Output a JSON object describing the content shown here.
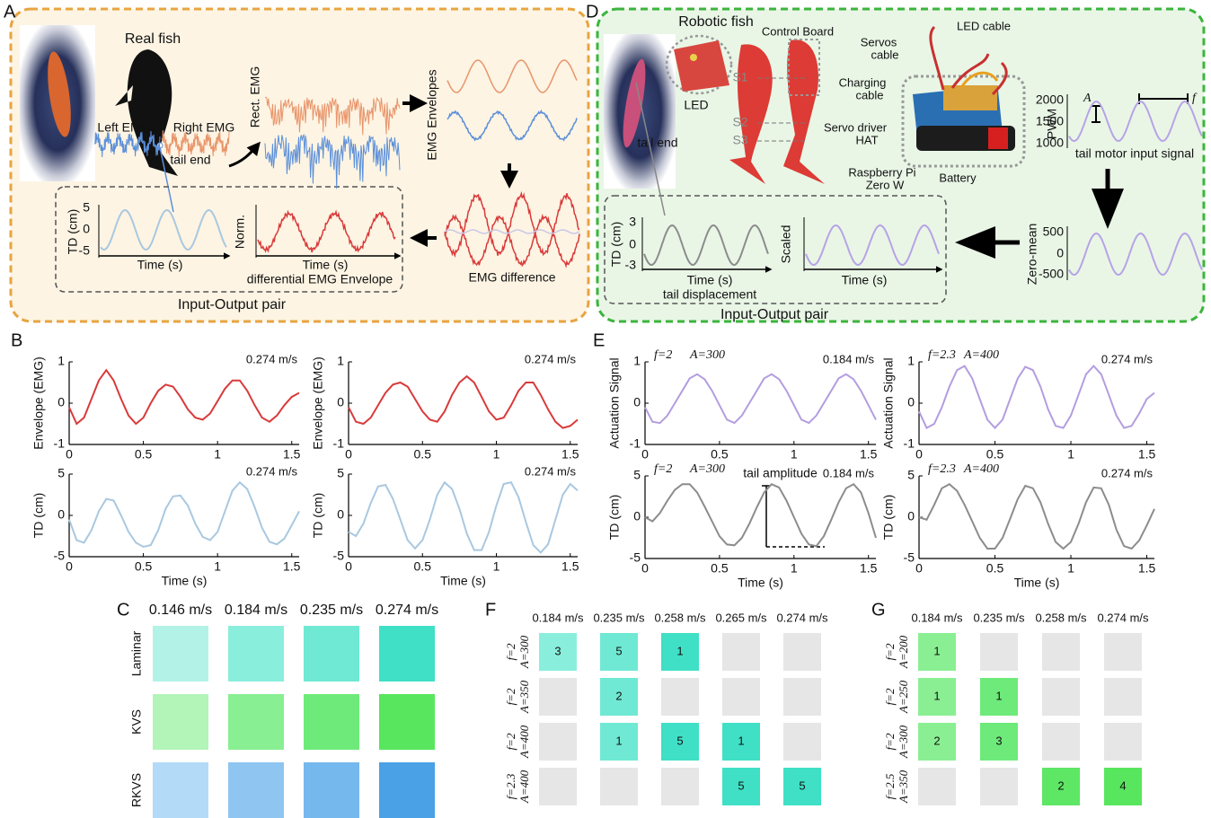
{
  "panel_labels": [
    "A",
    "B",
    "C",
    "D",
    "E",
    "F",
    "G"
  ],
  "diagram_a": {
    "title": "Real fish",
    "left_emg": "Left EMG",
    "right_emg": "Right EMG",
    "tail_end": "tail end",
    "rect_emg": "Rect. EMG",
    "emg_envelopes": "EMG Envelopes",
    "emg_difference": "EMG difference",
    "td_label": "TD (cm)",
    "td_ticks": [
      5,
      0,
      -5
    ],
    "td_xlabel": "Time (s)",
    "norm_label": "Norm.",
    "norm_xlabel": "Time (s)",
    "norm_caption": "differential EMG Envelope",
    "pair_label": "Input-Output pair"
  },
  "diagram_d": {
    "title": "Robotic fish",
    "led": "LED",
    "tail_end": "tail end",
    "segments": [
      "S1",
      "S2",
      "S3"
    ],
    "control_board": "Control Board",
    "led_cable": "LED cable",
    "servos_cable": [
      "Servos",
      "cable"
    ],
    "charging_cable": [
      "Charging",
      "cable"
    ],
    "servo_driver": [
      "Servo driver",
      "HAT"
    ],
    "raspberry_pi": [
      "Raspberry Pi",
      "Zero W"
    ],
    "battery": "Battery",
    "pwm_label": "PWM",
    "pwm_ticks": [
      2000,
      1500,
      1000
    ],
    "amplitude_symbol": "A",
    "frequency_symbol": "f",
    "pwm_caption": "tail motor input signal",
    "zero_mean_label": "Zero-mean",
    "zero_mean_ticks": [
      500,
      0,
      -500
    ],
    "td_label": "TD (cm)",
    "td_ticks": [
      3,
      0,
      -3
    ],
    "td_xlabel": "Time (s)",
    "td_caption": "tail displacement",
    "scaled_label": "Scaled",
    "scaled_xlabel": "Time (s)",
    "pair_label": "Input-Output pair"
  },
  "chart_data": [
    {
      "type": "line",
      "ylabel": "Envelope (EMG)",
      "annotation": "0.274 m/s",
      "color": "#d93a3a",
      "x": [
        0,
        0.05,
        0.1,
        0.15,
        0.2,
        0.25,
        0.3,
        0.35,
        0.4,
        0.45,
        0.5,
        0.55,
        0.6,
        0.65,
        0.7,
        0.75,
        0.8,
        0.85,
        0.9,
        0.95,
        1,
        1.05,
        1.1,
        1.15,
        1.2,
        1.25,
        1.3,
        1.35,
        1.4,
        1.45,
        1.5,
        1.55
      ],
      "values": [
        -0.1,
        -0.5,
        -0.35,
        0.1,
        0.55,
        0.8,
        0.55,
        0.1,
        -0.3,
        -0.5,
        -0.35,
        0,
        0.3,
        0.45,
        0.4,
        0.15,
        -0.15,
        -0.35,
        -0.4,
        -0.25,
        0.05,
        0.35,
        0.55,
        0.55,
        0.3,
        -0.05,
        -0.35,
        -0.45,
        -0.3,
        -0.05,
        0.15,
        0.25
      ],
      "xlim": [
        0,
        1.55
      ],
      "ylim": [
        -1,
        1
      ],
      "xticks": [
        0,
        0.5,
        1,
        1.5
      ],
      "yticks": [
        -1,
        0,
        1
      ]
    },
    {
      "type": "line",
      "ylabel": "Envelope (EMG)",
      "annotation": "0.274 m/s",
      "color": "#d93a3a",
      "x": [
        0,
        0.05,
        0.1,
        0.15,
        0.2,
        0.25,
        0.3,
        0.35,
        0.4,
        0.45,
        0.5,
        0.55,
        0.6,
        0.65,
        0.7,
        0.75,
        0.8,
        0.85,
        0.9,
        0.95,
        1,
        1.05,
        1.1,
        1.15,
        1.2,
        1.25,
        1.3,
        1.35,
        1.4,
        1.45,
        1.5,
        1.55
      ],
      "values": [
        -0.1,
        -0.45,
        -0.5,
        -0.35,
        -0.05,
        0.25,
        0.45,
        0.5,
        0.4,
        0.1,
        -0.2,
        -0.4,
        -0.45,
        -0.2,
        0.2,
        0.5,
        0.65,
        0.5,
        0.15,
        -0.2,
        -0.4,
        -0.35,
        -0.05,
        0.3,
        0.5,
        0.5,
        0.2,
        -0.15,
        -0.45,
        -0.6,
        -0.55,
        -0.4
      ],
      "xlim": [
        0,
        1.55
      ],
      "ylim": [
        -1,
        1
      ],
      "xticks": [
        0,
        0.5,
        1,
        1.5
      ],
      "yticks": [
        -1,
        0,
        1
      ]
    },
    {
      "type": "line",
      "ylabel": "TD (cm)",
      "xlabel": "Time (s)",
      "annotation": "0.274 m/s",
      "color": "#a9c8e0",
      "x": [
        0,
        0.05,
        0.1,
        0.15,
        0.2,
        0.25,
        0.3,
        0.35,
        0.4,
        0.45,
        0.5,
        0.55,
        0.6,
        0.65,
        0.7,
        0.75,
        0.8,
        0.85,
        0.9,
        0.95,
        1,
        1.05,
        1.1,
        1.15,
        1.2,
        1.25,
        1.3,
        1.35,
        1.4,
        1.45,
        1.5,
        1.55
      ],
      "values": [
        -0.5,
        -3,
        -3.3,
        -1.8,
        0.5,
        2,
        1.8,
        0,
        -2,
        -3.3,
        -3.8,
        -3.6,
        -1.8,
        0.8,
        2.3,
        2.4,
        1.2,
        -1,
        -2.6,
        -3,
        -2,
        0.5,
        3,
        4,
        3.2,
        1,
        -1.5,
        -3.2,
        -3.5,
        -2.8,
        -1.2,
        0.5
      ],
      "xlim": [
        0,
        1.55
      ],
      "ylim": [
        -5,
        5
      ],
      "xticks": [
        0,
        0.5,
        1,
        1.5
      ],
      "yticks": [
        -5,
        0,
        5
      ]
    },
    {
      "type": "line",
      "ylabel": "TD (cm)",
      "xlabel": "Time (s)",
      "annotation": "0.274 m/s",
      "color": "#a9c8e0",
      "x": [
        0,
        0.05,
        0.1,
        0.15,
        0.2,
        0.25,
        0.3,
        0.35,
        0.4,
        0.45,
        0.5,
        0.55,
        0.6,
        0.65,
        0.7,
        0.75,
        0.8,
        0.85,
        0.9,
        0.95,
        1,
        1.05,
        1.1,
        1.15,
        1.2,
        1.25,
        1.3,
        1.35,
        1.4,
        1.45,
        1.5,
        1.55
      ],
      "values": [
        -2,
        -2.5,
        -1,
        1.5,
        3.5,
        3.7,
        2,
        -0.5,
        -3,
        -4,
        -3,
        -0.5,
        2.5,
        4,
        3.2,
        0.8,
        -2.2,
        -4.2,
        -4.2,
        -2,
        1.2,
        3.8,
        4,
        2.2,
        -0.8,
        -3.6,
        -4.5,
        -3.5,
        -0.5,
        2.5,
        3.8,
        3
      ],
      "xlim": [
        0,
        1.55
      ],
      "ylim": [
        -5,
        5
      ],
      "xticks": [
        0,
        0.5,
        1,
        1.5
      ],
      "yticks": [
        -5,
        0,
        5
      ]
    },
    {
      "type": "line",
      "ylabel": "Actuation Signal",
      "annotation": "0.184 m/s",
      "params": [
        "f=2",
        "A=300"
      ],
      "color": "#b39ddf",
      "x": [
        0,
        0.05,
        0.1,
        0.15,
        0.2,
        0.25,
        0.3,
        0.35,
        0.4,
        0.45,
        0.5,
        0.55,
        0.6,
        0.65,
        0.7,
        0.75,
        0.8,
        0.85,
        0.9,
        0.95,
        1,
        1.05,
        1.1,
        1.15,
        1.2,
        1.25,
        1.3,
        1.35,
        1.4,
        1.45,
        1.5,
        1.55
      ],
      "values": [
        -0.1,
        -0.45,
        -0.48,
        -0.3,
        0,
        0.3,
        0.6,
        0.7,
        0.58,
        0.3,
        -0.05,
        -0.4,
        -0.48,
        -0.3,
        0,
        0.3,
        0.6,
        0.7,
        0.58,
        0.3,
        -0.05,
        -0.4,
        -0.48,
        -0.3,
        0,
        0.3,
        0.6,
        0.7,
        0.58,
        0.3,
        -0.05,
        -0.4
      ],
      "xlim": [
        0,
        1.55
      ],
      "ylim": [
        -1,
        1
      ],
      "xticks": [
        0,
        0.5,
        1,
        1.5
      ],
      "yticks": [
        -1,
        0,
        1
      ]
    },
    {
      "type": "line",
      "ylabel": "Actuation Signal",
      "annotation": "0.274 m/s",
      "params": [
        "f=2.3",
        "A=400"
      ],
      "color": "#b39ddf",
      "x": [
        0,
        0.05,
        0.1,
        0.15,
        0.2,
        0.25,
        0.3,
        0.35,
        0.4,
        0.45,
        0.5,
        0.55,
        0.6,
        0.65,
        0.7,
        0.75,
        0.8,
        0.85,
        0.9,
        0.95,
        1,
        1.05,
        1.1,
        1.15,
        1.2,
        1.25,
        1.3,
        1.35,
        1.4,
        1.45,
        1.5,
        1.55
      ],
      "values": [
        -0.2,
        -0.6,
        -0.5,
        -0.1,
        0.4,
        0.8,
        0.9,
        0.6,
        0.1,
        -0.4,
        -0.6,
        -0.4,
        0.1,
        0.6,
        0.88,
        0.8,
        0.4,
        -0.15,
        -0.55,
        -0.6,
        -0.3,
        0.2,
        0.7,
        0.9,
        0.7,
        0.2,
        -0.3,
        -0.6,
        -0.55,
        -0.25,
        0.1,
        0.25
      ],
      "xlim": [
        0,
        1.55
      ],
      "ylim": [
        -1,
        1
      ],
      "xticks": [
        0,
        0.5,
        1,
        1.5
      ],
      "yticks": [
        -1,
        0,
        1
      ]
    },
    {
      "type": "line",
      "ylabel": "TD (cm)",
      "xlabel": "Time (s)",
      "annotation": "0.184 m/s",
      "params": [
        "f=2",
        "A=300"
      ],
      "note": "tail amplitude",
      "color": "#8c8c8c",
      "x": [
        0,
        0.05,
        0.1,
        0.15,
        0.2,
        0.25,
        0.3,
        0.35,
        0.4,
        0.45,
        0.5,
        0.55,
        0.6,
        0.65,
        0.7,
        0.75,
        0.8,
        0.85,
        0.9,
        0.95,
        1,
        1.05,
        1.1,
        1.15,
        1.2,
        1.25,
        1.3,
        1.35,
        1.4,
        1.45,
        1.5,
        1.55
      ],
      "values": [
        0,
        -0.5,
        0.5,
        2,
        3.3,
        4,
        4,
        3,
        1.3,
        -0.5,
        -2.3,
        -3.3,
        -3.4,
        -2.5,
        -0.8,
        1.2,
        3,
        4,
        3.6,
        2,
        0,
        -2,
        -3.3,
        -3.5,
        -2.3,
        -0.3,
        1.8,
        3.5,
        4,
        3,
        0.5,
        -2.5
      ],
      "xlim": [
        0,
        1.55
      ],
      "ylim": [
        -5,
        5
      ],
      "xticks": [
        0,
        0.5,
        1,
        1.5
      ],
      "yticks": [
        -5,
        0,
        5
      ]
    },
    {
      "type": "line",
      "ylabel": "TD (cm)",
      "xlabel": "Time (s)",
      "annotation": "0.274 m/s",
      "params": [
        "f=2.3",
        "A=400"
      ],
      "color": "#8c8c8c",
      "x": [
        0,
        0.05,
        0.1,
        0.15,
        0.2,
        0.25,
        0.3,
        0.35,
        0.4,
        0.45,
        0.5,
        0.55,
        0.6,
        0.65,
        0.7,
        0.75,
        0.8,
        0.85,
        0.9,
        0.95,
        1,
        1.05,
        1.1,
        1.15,
        1.2,
        1.25,
        1.3,
        1.35,
        1.4,
        1.45,
        1.5,
        1.55
      ],
      "values": [
        0,
        -0.3,
        1.5,
        3.5,
        4,
        3.2,
        1.5,
        -0.5,
        -2.5,
        -3.8,
        -3.8,
        -2.5,
        -0.2,
        2.2,
        3.8,
        3.5,
        1.8,
        -0.8,
        -3,
        -3.8,
        -3,
        -0.8,
        1.8,
        3.6,
        3.5,
        1.5,
        -1.5,
        -3.5,
        -3.8,
        -2.8,
        -1,
        1
      ],
      "xlim": [
        0,
        1.55
      ],
      "ylim": [
        -5,
        5
      ],
      "xticks": [
        0,
        0.5,
        1,
        1.5
      ],
      "yticks": [
        -5,
        0,
        5
      ]
    },
    {
      "type": "heatmap",
      "columns": [
        "0.146 m/s",
        "0.184 m/s",
        "0.235 m/s",
        "0.274 m/s"
      ],
      "rows": [
        "Laminar",
        "KVS",
        "RKVS"
      ],
      "colors": [
        [
          "#b3f3e7",
          "#8aeedd",
          "#6fe9d3",
          "#40e0c6"
        ],
        [
          "#b3f4b9",
          "#88ef92",
          "#6eea7a",
          "#58e65e"
        ],
        [
          "#b3daf7",
          "#8ec6f1",
          "#75b8ee",
          "#4aa1e6"
        ]
      ]
    },
    {
      "type": "grid",
      "columns": [
        "0.184 m/s",
        "0.235 m/s",
        "0.258 m/s",
        "0.265 m/s",
        "0.274 m/s"
      ],
      "rows": [
        [
          "f=2",
          "A=300"
        ],
        [
          "f=2",
          "A=350"
        ],
        [
          "f=2",
          "A=400"
        ],
        [
          "f=2.3",
          "A=400"
        ]
      ],
      "values": [
        [
          3,
          5,
          1,
          null,
          null
        ],
        [
          null,
          2,
          null,
          null,
          null
        ],
        [
          null,
          1,
          5,
          1,
          null
        ],
        [
          null,
          null,
          null,
          5,
          5
        ]
      ],
      "colors": [
        [
          "#8aeedd",
          "#6fe9d3",
          "#40e0c6",
          "#e6e6e6",
          "#e6e6e6"
        ],
        [
          "#e6e6e6",
          "#6fe9d3",
          "#e6e6e6",
          "#e6e6e6",
          "#e6e6e6"
        ],
        [
          "#e6e6e6",
          "#6fe9d3",
          "#40e0c6",
          "#40e0c6",
          "#e6e6e6"
        ],
        [
          "#e6e6e6",
          "#e6e6e6",
          "#e6e6e6",
          "#40e0c6",
          "#40e0c6"
        ]
      ]
    },
    {
      "type": "grid",
      "columns": [
        "0.184 m/s",
        "0.235 m/s",
        "0.258 m/s",
        "0.274 m/s"
      ],
      "rows": [
        [
          "f=2",
          "A=200"
        ],
        [
          "f=2",
          "A=250"
        ],
        [
          "f=2",
          "A=300"
        ],
        [
          "f=2.5",
          "A=350"
        ]
      ],
      "values": [
        [
          1,
          null,
          null,
          null
        ],
        [
          1,
          1,
          null,
          null
        ],
        [
          2,
          3,
          null,
          null
        ],
        [
          null,
          null,
          2,
          4
        ]
      ],
      "colors": [
        [
          "#8aef92",
          "#e6e6e6",
          "#e6e6e6",
          "#e6e6e6"
        ],
        [
          "#8aef92",
          "#6eea7a",
          "#e6e6e6",
          "#e6e6e6"
        ],
        [
          "#8aef92",
          "#6eea7a",
          "#e6e6e6",
          "#e6e6e6"
        ],
        [
          "#e6e6e6",
          "#e6e6e6",
          "#5ee665",
          "#58e65e"
        ]
      ]
    }
  ]
}
